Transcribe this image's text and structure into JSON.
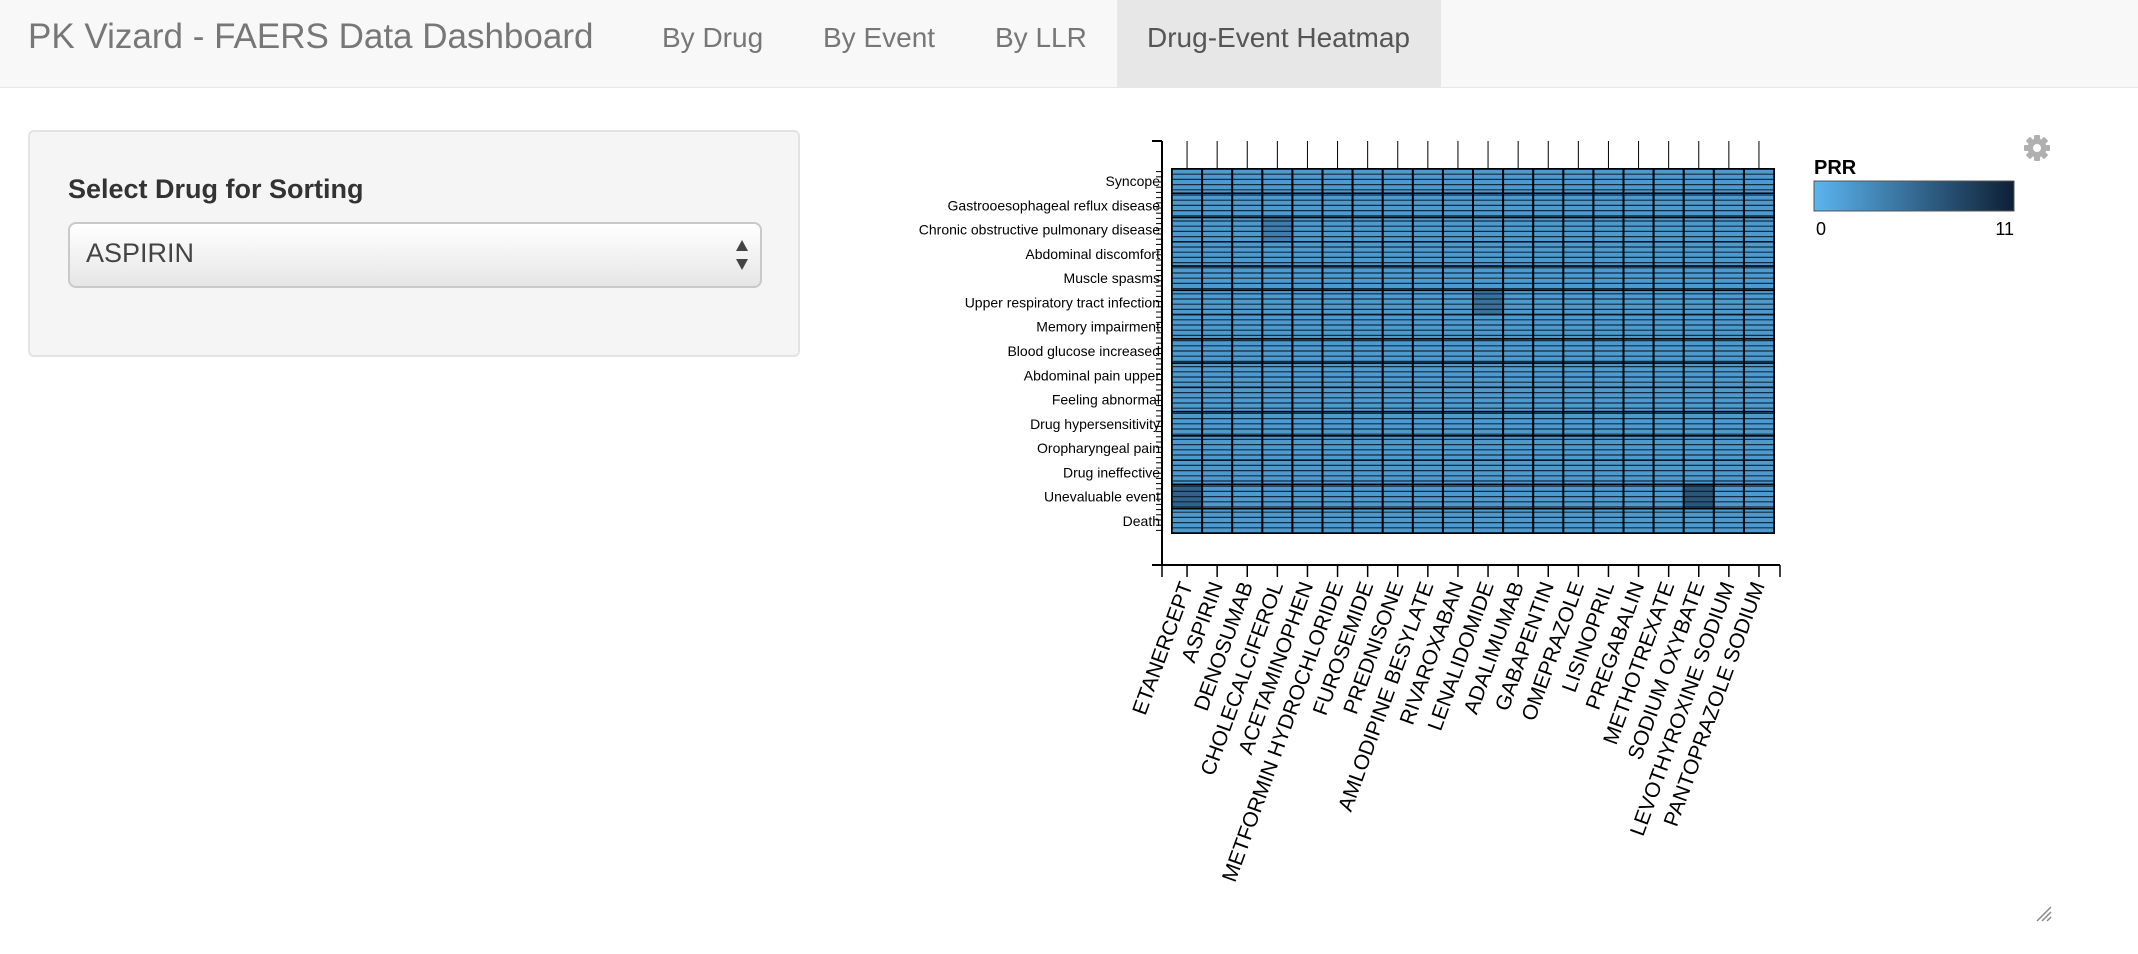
{
  "app": {
    "title": "PK Vizard - FAERS Data Dashboard",
    "tabs": [
      {
        "label": "By Drug",
        "active": false
      },
      {
        "label": "By Event",
        "active": false
      },
      {
        "label": "By LLR",
        "active": false
      },
      {
        "label": "Drug-Event Heatmap",
        "active": true
      }
    ]
  },
  "sidebar": {
    "select_label": "Select Drug for Sorting",
    "select_value": "ASPIRIN"
  },
  "colors": {
    "accent_low": "#5bb5f0",
    "accent_high": "#0e1f35",
    "cell_fill": "#3f87c9",
    "cell_border": "#000000"
  },
  "icons": {
    "settings": "gear-icon",
    "select_caret": "up-down-caret-icon",
    "resize": "resize-handle-icon"
  },
  "chart_data": {
    "type": "heatmap",
    "columns": [
      "ETANERCEPT",
      "ASPIRIN",
      "DENOSUMAB",
      "CHOLECALCIFEROL",
      "ACETAMINOPHEN",
      "METFORMIN HYDROCHLORIDE",
      "FUROSEMIDE",
      "PREDNISONE",
      "AMLODIPINE BESYLATE",
      "RIVAROXABAN",
      "LENALIDOMIDE",
      "ADALIMUMAB",
      "GABAPENTIN",
      "OMEPRAZOLE",
      "LISINOPRIL",
      "PREGABALIN",
      "METHOTREXATE",
      "SODIUM OXYBATE",
      "LEVOTHYROXINE SODIUM",
      "PANTOPRAZOLE SODIUM"
    ],
    "rows": [
      "Syncope",
      "Gastrooesophageal reflux disease",
      "Chronic obstructive pulmonary disease",
      "Abdominal discomfort",
      "Muscle spasms",
      "Upper respiratory tract infection",
      "Memory impairment",
      "Blood glucose increased",
      "Abdominal pain upper",
      "Feeling abnormal",
      "Drug hypersensitivity",
      "Oropharyngeal pain",
      "Drug ineffective",
      "Unevaluable event",
      "Death"
    ],
    "legend": {
      "title": "PRR",
      "min": 0,
      "max": 11
    },
    "base_value": 2,
    "highlights": [
      {
        "row": 13,
        "col": 0,
        "value": 6
      },
      {
        "row": 13,
        "col": 17,
        "value": 7
      },
      {
        "row": 5,
        "col": 10,
        "value": 5
      },
      {
        "row": 2,
        "col": 3,
        "value": 4
      }
    ]
  }
}
